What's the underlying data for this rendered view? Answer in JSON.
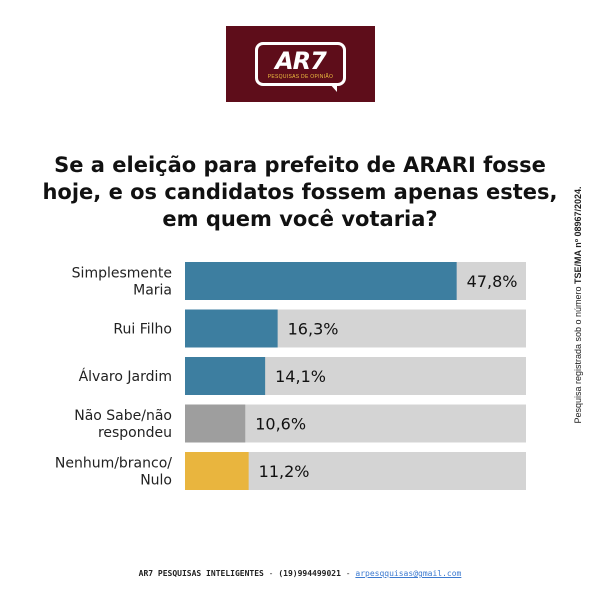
{
  "logo": {
    "mark": "AR7",
    "tagline": "PESQUISAS DE OPINIÃO",
    "color": "#5e0d1a"
  },
  "chart_data": {
    "type": "bar",
    "orientation": "horizontal",
    "title": "Se a eleição para prefeito de ARARI fosse hoje, e os candidatos fossem apenas estes, em quem você votaria?",
    "categories": [
      [
        "Simplesmente",
        "Maria"
      ],
      [
        "Rui Filho"
      ],
      [
        "Álvaro Jardim"
      ],
      [
        "Não Sabe/não",
        "respondeu"
      ],
      [
        "Nenhum/branco/",
        "Nulo"
      ]
    ],
    "values": [
      47.8,
      16.3,
      14.1,
      10.6,
      11.2
    ],
    "value_labels": [
      "47,8%",
      "16,3%",
      "14,1%",
      "10,6%",
      "11,2%"
    ],
    "colors": [
      "#3d7ea0",
      "#3d7ea0",
      "#3d7ea0",
      "#9e9e9e",
      "#e9b53e"
    ],
    "track_color": "#d4d4d4",
    "xlim": [
      0,
      60
    ],
    "grid": false,
    "legend": "none"
  },
  "side_note": {
    "prefix": "Pesquisa registrada sob o número ",
    "registration": "TSE/MA nº 08967/2024."
  },
  "footer": {
    "company": "AR7 PESQUISAS INTELIGENTES",
    "separator1": " - ",
    "phone": "(19)994499021",
    "separator2": " - ",
    "email": "arpesqquisas@gmail.com"
  }
}
